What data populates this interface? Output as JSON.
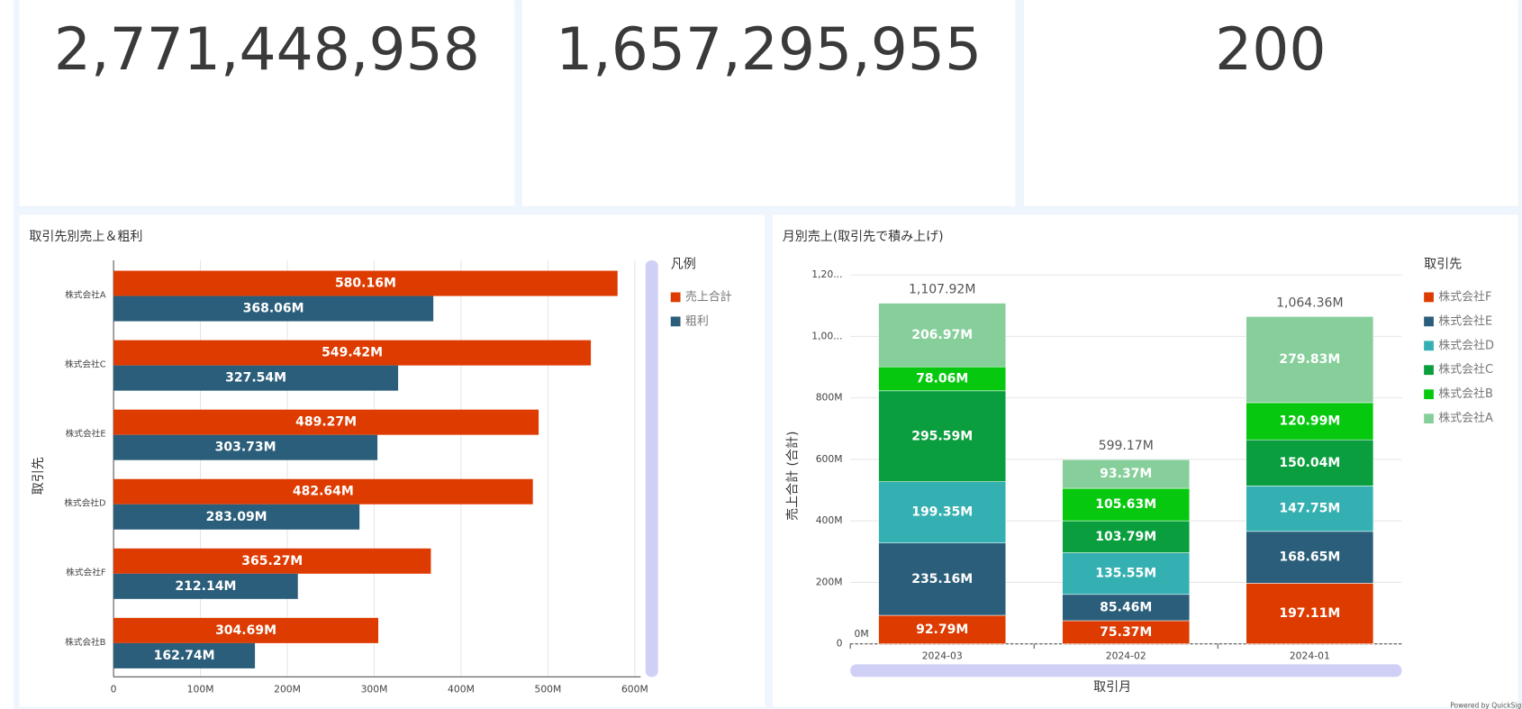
{
  "kpis": [
    "2,771,448,958",
    "1,657,295,955",
    "200"
  ],
  "chart_data": [
    {
      "type": "hbar",
      "title": "取引先別売上＆粗利",
      "y_label": "取引先",
      "legend_title": "凡例",
      "categories": [
        "株式会社A",
        "株式会社C",
        "株式会社E",
        "株式会社D",
        "株式会社F",
        "株式会社B"
      ],
      "series": [
        {
          "name": "売上合計",
          "color": "#de3b00",
          "values": [
            580160000,
            549420000,
            489270000,
            482640000,
            365270000,
            304690000
          ],
          "value_labels": [
            "580.16M",
            "549.42M",
            "489.27M",
            "482.64M",
            "365.27M",
            "304.69M"
          ]
        },
        {
          "name": "粗利",
          "color": "#2b5e7a",
          "values": [
            368060000,
            327540000,
            303730000,
            283090000,
            212140000,
            162740000
          ],
          "value_labels": [
            "368.06M",
            "327.54M",
            "303.73M",
            "283.09M",
            "212.14M",
            "162.74M"
          ]
        }
      ],
      "xlim": [
        0,
        600000000
      ],
      "xticks": [
        0,
        {
          "value": 100000000,
          "label": "100M"
        },
        {
          "value": 200000000,
          "label": "200M"
        },
        {
          "value": 300000000,
          "label": "300M"
        },
        {
          "value": 400000000,
          "label": "400M"
        },
        {
          "value": 500000000,
          "label": "500M"
        },
        {
          "value": 600000000,
          "label": "600M"
        }
      ],
      "grid": true
    },
    {
      "type": "stacked_bar",
      "title": "月別売上(取引先で積み上げ)",
      "x_label": "取引月",
      "y_label": "売上合計 (合計)",
      "legend_title": "取引先",
      "baseline_label": "0M",
      "categories": [
        "2024-03",
        "2024-02",
        "2024-01"
      ],
      "total_labels": [
        "1,107.92M",
        "599.17M",
        "1,064.36M"
      ],
      "series": [
        {
          "name": "株式会社F",
          "color": "#de3b00",
          "values": [
            92790000,
            75370000,
            197110000
          ],
          "value_labels": [
            "92.79M",
            "75.37M",
            "197.11M"
          ]
        },
        {
          "name": "株式会社E",
          "color": "#2b5e7a",
          "values": [
            235160000,
            85460000,
            168650000
          ],
          "value_labels": [
            "235.16M",
            "85.46M",
            "168.65M"
          ]
        },
        {
          "name": "株式会社D",
          "color": "#35b0b2",
          "values": [
            199350000,
            135550000,
            147750000
          ],
          "value_labels": [
            "199.35M",
            "135.55M",
            "147.75M"
          ]
        },
        {
          "name": "株式会社C",
          "color": "#0a9e3e",
          "values": [
            295590000,
            103790000,
            150040000
          ],
          "value_labels": [
            "295.59M",
            "103.79M",
            "150.04M"
          ]
        },
        {
          "name": "株式会社B",
          "color": "#06c90f",
          "values": [
            78060000,
            105630000,
            120990000
          ],
          "value_labels": [
            "78.06M",
            "105.63M",
            "120.99M"
          ]
        },
        {
          "name": "株式会社A",
          "color": "#86ce9a",
          "values": [
            206970000,
            93370000,
            279830000
          ],
          "value_labels": [
            "206.97M",
            "93.37M",
            "279.83M"
          ]
        }
      ],
      "ylim": [
        0,
        1200000000
      ],
      "yticks": [
        0,
        {
          "value": 200000000,
          "label": "200M"
        },
        {
          "value": 400000000,
          "label": "400M"
        },
        {
          "value": 600000000,
          "label": "600M"
        },
        {
          "value": 800000000,
          "label": "800M"
        },
        {
          "value": 1000000000,
          "label": "1,00..."
        },
        {
          "value": 1200000000,
          "label": "1,20..."
        }
      ],
      "grid": true
    }
  ],
  "footer": "Powered by QuickSight"
}
